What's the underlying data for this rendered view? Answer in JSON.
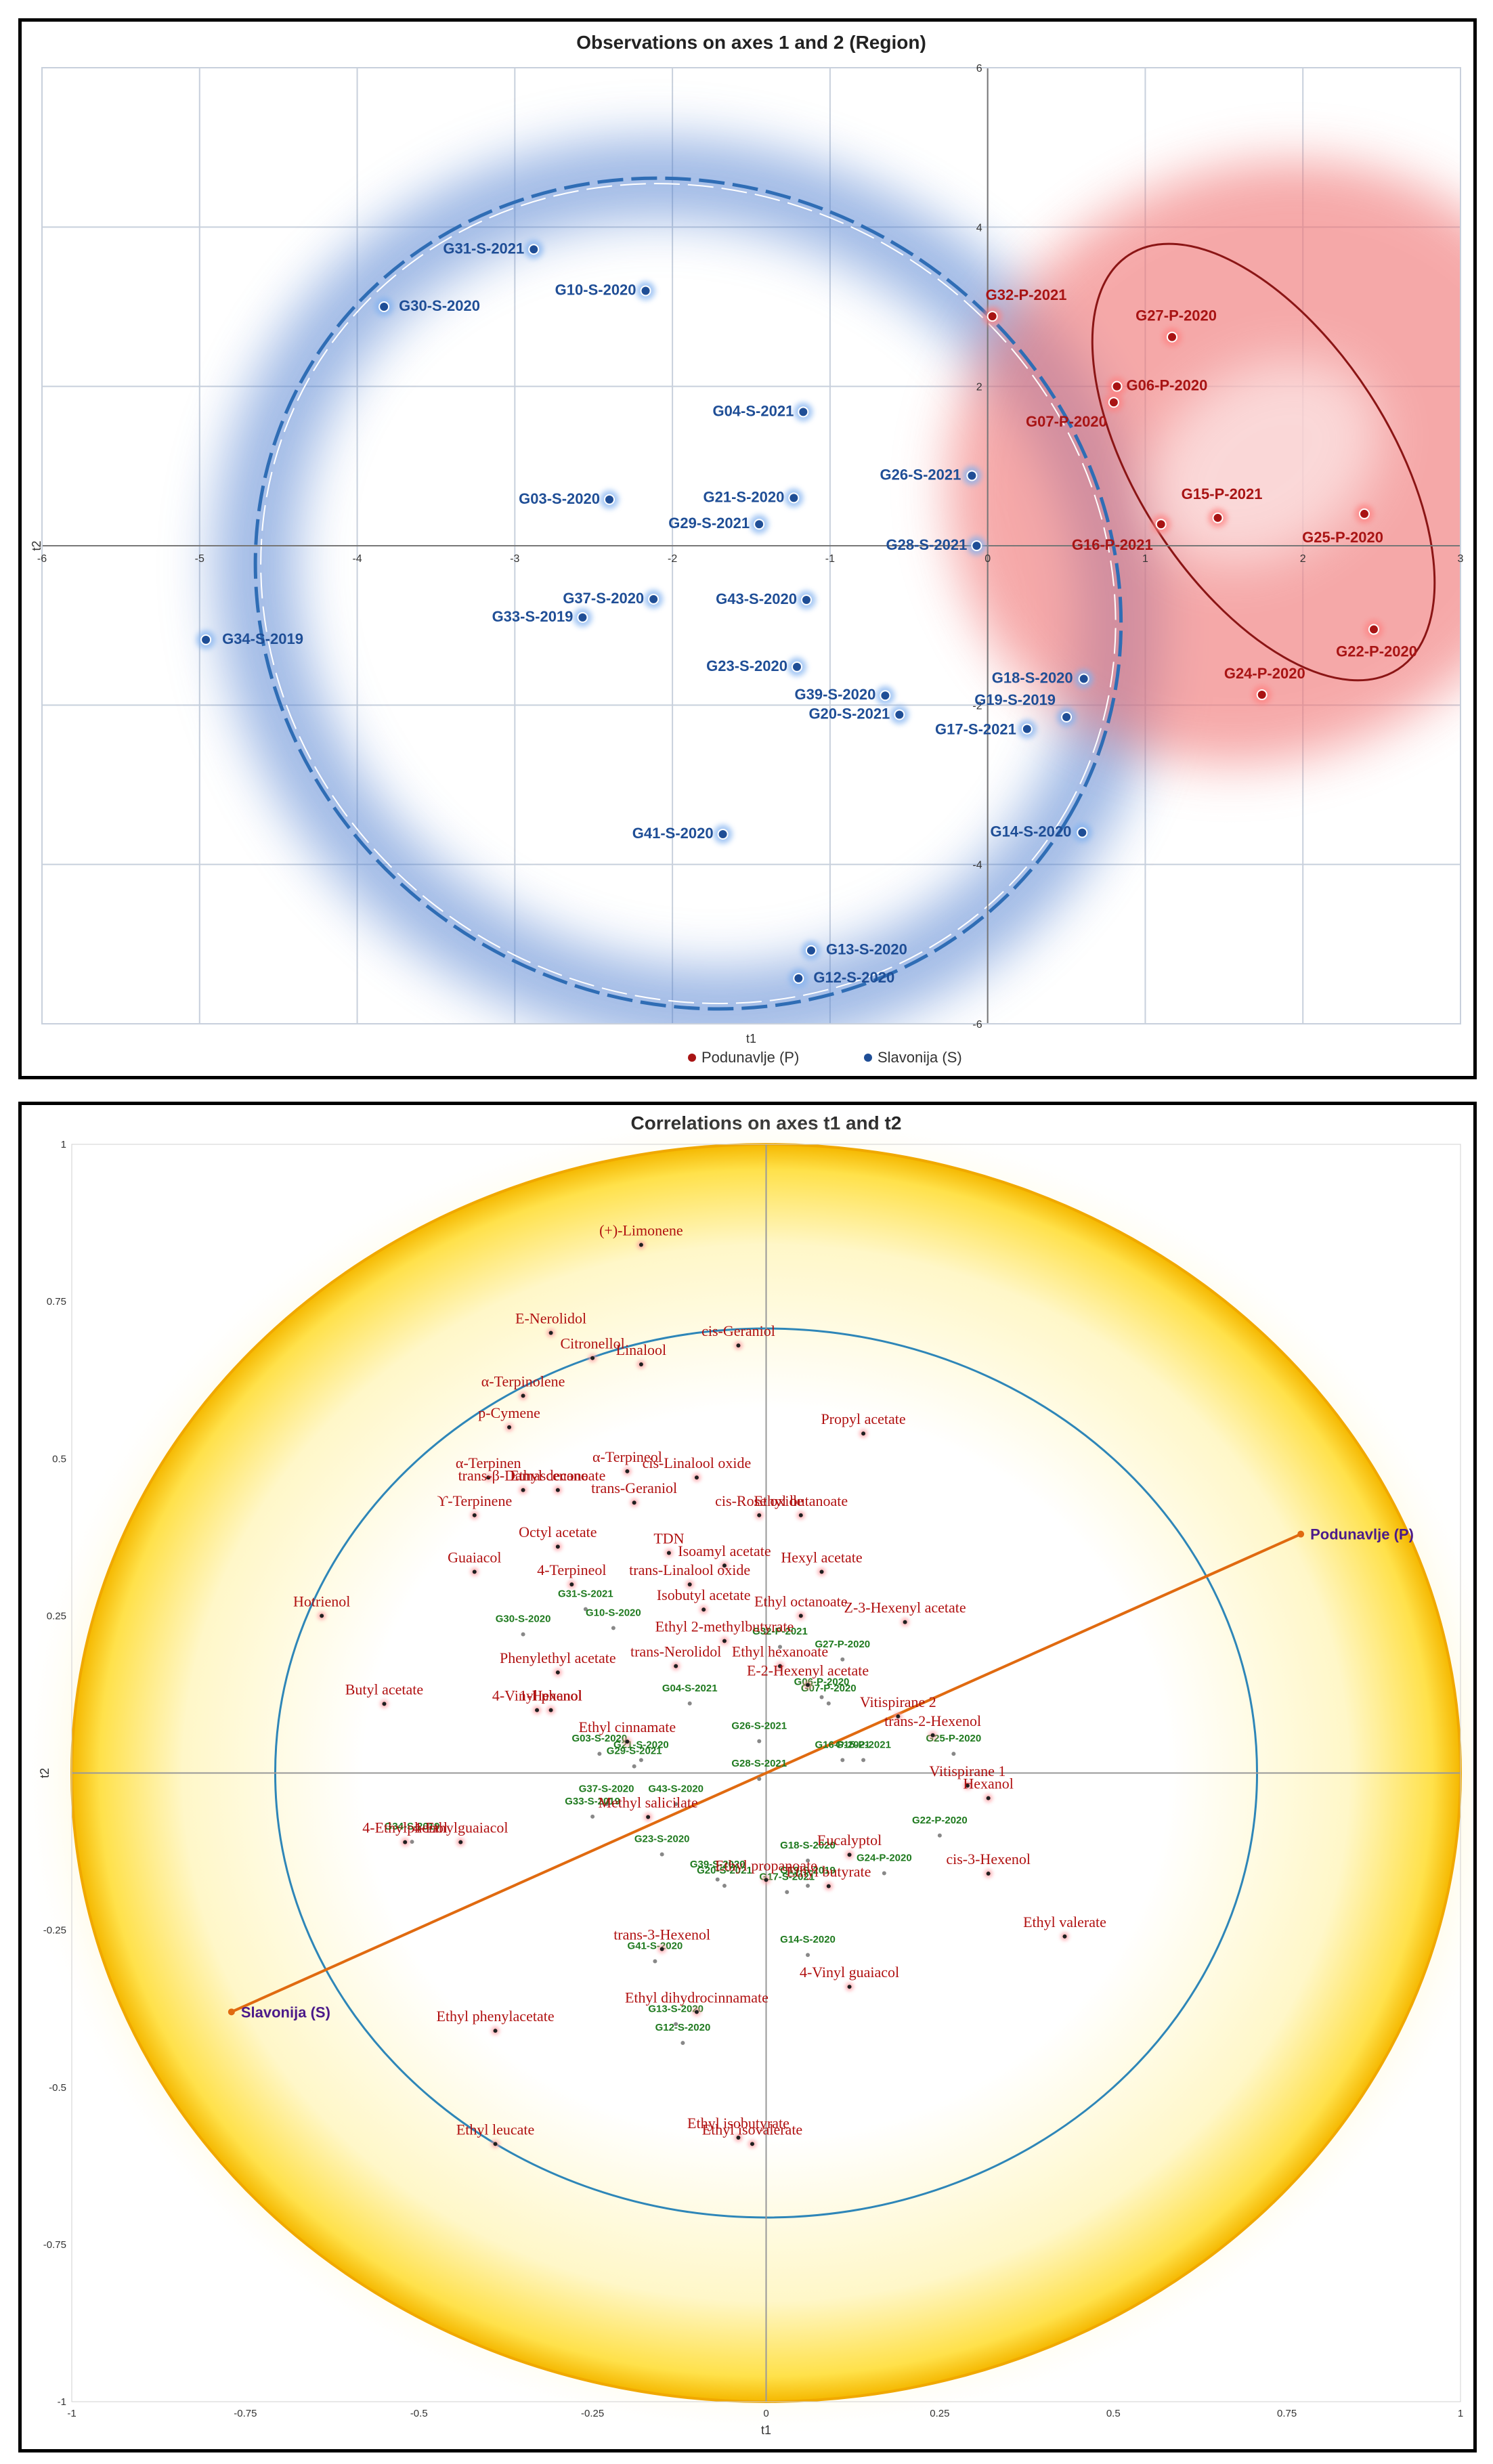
{
  "colors": {
    "slavonija": "#1f4e96",
    "podunavlje": "#a81414",
    "variable_label": "#b01010",
    "supplementary_obs": "#1f7a1f",
    "category": "#4b1a8a",
    "biplot_line": "#e06a10",
    "circle": "#2e86b8",
    "glow_yellow": "#ffe14a"
  },
  "chart_data": [
    {
      "type": "scatter",
      "title": "Observations on axes 1 and 2 (Region)",
      "xlabel": "t1",
      "ylabel": "t2",
      "xlim": [
        -6,
        3
      ],
      "ylim": [
        -6,
        6
      ],
      "xticks": [
        -6,
        -5,
        -4,
        -3,
        -2,
        -1,
        0,
        1,
        2,
        3
      ],
      "yticks": [
        -6,
        -4,
        -2,
        2,
        4,
        6
      ],
      "grid": true,
      "legend": [
        "Podunavlje (P)",
        "Slavonija (S)"
      ],
      "legend_position": "bottom-center",
      "series": [
        {
          "name": "Slavonija (S)",
          "points": [
            {
              "label": "G31-S-2021",
              "x": -2.88,
              "y": 3.72
            },
            {
              "label": "G30-S-2020",
              "x": -3.83,
              "y": 3.0
            },
            {
              "label": "G10-S-2020",
              "x": -2.17,
              "y": 3.2
            },
            {
              "label": "G04-S-2021",
              "x": -1.17,
              "y": 1.68
            },
            {
              "label": "G03-S-2020",
              "x": -2.4,
              "y": 0.58
            },
            {
              "label": "G21-S-2020",
              "x": -1.23,
              "y": 0.6
            },
            {
              "label": "G29-S-2021",
              "x": -1.45,
              "y": 0.27
            },
            {
              "label": "G26-S-2021",
              "x": -0.1,
              "y": 0.88
            },
            {
              "label": "G28-S-2021",
              "x": -0.07,
              "y": 0.0
            },
            {
              "label": "G37-S-2020",
              "x": -2.12,
              "y": -0.67
            },
            {
              "label": "G33-S-2019",
              "x": -2.57,
              "y": -0.9
            },
            {
              "label": "G43-S-2020",
              "x": -1.15,
              "y": -0.68
            },
            {
              "label": "G34-S-2019",
              "x": -4.96,
              "y": -1.18
            },
            {
              "label": "G23-S-2020",
              "x": -1.21,
              "y": -1.52
            },
            {
              "label": "G18-S-2020",
              "x": 0.61,
              "y": -1.67
            },
            {
              "label": "G39-S-2020",
              "x": -0.65,
              "y": -1.88
            },
            {
              "label": "G20-S-2021",
              "x": -0.56,
              "y": -2.12
            },
            {
              "label": "G19-S-2019",
              "x": 0.5,
              "y": -2.15
            },
            {
              "label": "G17-S-2021",
              "x": 0.25,
              "y": -2.3
            },
            {
              "label": "G14-S-2020",
              "x": 0.6,
              "y": -3.6
            },
            {
              "label": "G41-S-2020",
              "x": -1.68,
              "y": -3.62
            },
            {
              "label": "G13-S-2020",
              "x": -1.12,
              "y": -5.08
            },
            {
              "label": "G12-S-2020",
              "x": -1.2,
              "y": -5.43
            }
          ]
        },
        {
          "name": "Podunavlje (P)",
          "points": [
            {
              "label": "G32-P-2021",
              "x": 0.03,
              "y": 2.88
            },
            {
              "label": "G27-P-2020",
              "x": 1.17,
              "y": 2.62
            },
            {
              "label": "G06-P-2020",
              "x": 0.82,
              "y": 2.0
            },
            {
              "label": "G07-P-2020",
              "x": 0.8,
              "y": 1.8
            },
            {
              "label": "G15-P-2021",
              "x": 1.46,
              "y": 0.35
            },
            {
              "label": "G16-P-2021",
              "x": 1.1,
              "y": 0.27
            },
            {
              "label": "G25-P-2020",
              "x": 2.39,
              "y": 0.4
            },
            {
              "label": "G22-P-2020",
              "x": 2.45,
              "y": -1.05
            },
            {
              "label": "G24-P-2020",
              "x": 1.74,
              "y": -1.87
            }
          ]
        }
      ]
    },
    {
      "type": "scatter",
      "title": "Correlations on axes t1 and t2",
      "xlabel": "t1",
      "ylabel": "t2",
      "xlim": [
        -1,
        1
      ],
      "ylim": [
        -1,
        1
      ],
      "xticks": [
        -1,
        -0.75,
        -0.5,
        -0.25,
        0,
        0.25,
        0.5,
        0.75,
        1
      ],
      "yticks": [
        -1,
        -0.75,
        -0.5,
        -0.25,
        0.25,
        0.5,
        0.75,
        1
      ],
      "grid": false,
      "categories": [
        {
          "label": "Podunavlje (P)",
          "x": 0.77,
          "y": 0.38
        },
        {
          "label": "Slavonija (S)",
          "x": -0.77,
          "y": -0.38
        }
      ],
      "variables": [
        {
          "label": "(+)-Limonene",
          "x": -0.18,
          "y": 0.84
        },
        {
          "label": "E-Nerolidol",
          "x": -0.31,
          "y": 0.7
        },
        {
          "label": "Citronellol",
          "x": -0.25,
          "y": 0.66
        },
        {
          "label": "Linalool",
          "x": -0.18,
          "y": 0.65
        },
        {
          "label": "cis-Geraniol",
          "x": -0.04,
          "y": 0.68
        },
        {
          "label": "α-Terpinolene",
          "x": -0.35,
          "y": 0.6
        },
        {
          "label": "p-Cymene",
          "x": -0.37,
          "y": 0.55
        },
        {
          "label": "Propyl acetate",
          "x": 0.14,
          "y": 0.54
        },
        {
          "label": "α-Terpinen",
          "x": -0.4,
          "y": 0.47
        },
        {
          "label": "trans-β-Damascenone",
          "x": -0.35,
          "y": 0.45
        },
        {
          "label": "Ethyl decanoate",
          "x": -0.3,
          "y": 0.45
        },
        {
          "label": "α-Terpineol",
          "x": -0.2,
          "y": 0.48
        },
        {
          "label": "cis-Linalool oxide",
          "x": -0.1,
          "y": 0.47
        },
        {
          "label": "trans-Geraniol",
          "x": -0.19,
          "y": 0.43
        },
        {
          "label": "ϒ-Terpinene",
          "x": -0.42,
          "y": 0.41
        },
        {
          "label": "cis-Rose oxide",
          "x": -0.01,
          "y": 0.41
        },
        {
          "label": "Ethyl butanoate",
          "x": 0.05,
          "y": 0.41
        },
        {
          "label": "Octyl acetate",
          "x": -0.3,
          "y": 0.36
        },
        {
          "label": "TDN",
          "x": -0.14,
          "y": 0.35
        },
        {
          "label": "Isoamyl acetate",
          "x": -0.06,
          "y": 0.33
        },
        {
          "label": "Hexyl acetate",
          "x": 0.08,
          "y": 0.32
        },
        {
          "label": "Guaiacol",
          "x": -0.42,
          "y": 0.32
        },
        {
          "label": "4-Terpineol",
          "x": -0.28,
          "y": 0.3
        },
        {
          "label": "trans-Linalool oxide",
          "x": -0.11,
          "y": 0.3
        },
        {
          "label": "Hotrienol",
          "x": -0.64,
          "y": 0.25
        },
        {
          "label": "Isobutyl acetate",
          "x": -0.09,
          "y": 0.26
        },
        {
          "label": "Ethyl octanoate",
          "x": 0.05,
          "y": 0.25
        },
        {
          "label": "Z-3-Hexenyl acetate",
          "x": 0.2,
          "y": 0.24
        },
        {
          "label": "Ethyl 2-methylbutyrate",
          "x": -0.06,
          "y": 0.21
        },
        {
          "label": "Phenylethyl acetate",
          "x": -0.3,
          "y": 0.16
        },
        {
          "label": "trans-Nerolidol",
          "x": -0.13,
          "y": 0.17
        },
        {
          "label": "Ethyl hexanoate",
          "x": 0.02,
          "y": 0.17
        },
        {
          "label": "E-2-Hexenyl acetate",
          "x": 0.06,
          "y": 0.14
        },
        {
          "label": "Butyl acetate",
          "x": -0.55,
          "y": 0.11
        },
        {
          "label": "4-Vinyl phenol",
          "x": -0.33,
          "y": 0.1
        },
        {
          "label": "1-Hexanol",
          "x": -0.31,
          "y": 0.1
        },
        {
          "label": "Vitispirane 2",
          "x": 0.19,
          "y": 0.09
        },
        {
          "label": "trans-2-Hexenol",
          "x": 0.24,
          "y": 0.06
        },
        {
          "label": "Ethyl cinnamate",
          "x": -0.2,
          "y": 0.05
        },
        {
          "label": "Vitispirane 1",
          "x": 0.29,
          "y": -0.02
        },
        {
          "label": "Hexanol",
          "x": 0.32,
          "y": -0.04
        },
        {
          "label": "Methyl salicilate",
          "x": -0.17,
          "y": -0.07
        },
        {
          "label": "4-Ethylphenol",
          "x": -0.52,
          "y": -0.11
        },
        {
          "label": "4-Ethylguaiacol",
          "x": -0.44,
          "y": -0.11
        },
        {
          "label": "Eucalyptol",
          "x": 0.12,
          "y": -0.13
        },
        {
          "label": "Ethyl propanoate",
          "x": 0.0,
          "y": -0.17
        },
        {
          "label": "Ethyl butyrate",
          "x": 0.09,
          "y": -0.18
        },
        {
          "label": "cis-3-Hexenol",
          "x": 0.32,
          "y": -0.16
        },
        {
          "label": "Ethyl valerate",
          "x": 0.43,
          "y": -0.26
        },
        {
          "label": "trans-3-Hexenol",
          "x": -0.15,
          "y": -0.28
        },
        {
          "label": "4-Vinyl guaiacol",
          "x": 0.12,
          "y": -0.34
        },
        {
          "label": "Ethyl dihydrocinnamate",
          "x": -0.1,
          "y": -0.38
        },
        {
          "label": "Ethyl phenylacetate",
          "x": -0.39,
          "y": -0.41
        },
        {
          "label": "Ethyl leucate",
          "x": -0.39,
          "y": -0.59
        },
        {
          "label": "Ethyl isobutyrate",
          "x": -0.04,
          "y": -0.58
        },
        {
          "label": "Ethyl isovalerate",
          "x": -0.02,
          "y": -0.59
        }
      ],
      "supplementary_observations": [
        {
          "label": "G31-S-2021",
          "x": -0.26,
          "y": 0.28
        },
        {
          "label": "G30-S-2020",
          "x": -0.35,
          "y": 0.24
        },
        {
          "label": "G10-S-2020",
          "x": -0.22,
          "y": 0.25
        },
        {
          "label": "G32-P-2021",
          "x": 0.02,
          "y": 0.22
        },
        {
          "label": "G27-P-2020",
          "x": 0.11,
          "y": 0.2
        },
        {
          "label": "G06-P-2020",
          "x": 0.08,
          "y": 0.14
        },
        {
          "label": "G07-P-2020",
          "x": 0.09,
          "y": 0.13
        },
        {
          "label": "G04-S-2021",
          "x": -0.11,
          "y": 0.13
        },
        {
          "label": "G03-S-2020",
          "x": -0.24,
          "y": 0.05
        },
        {
          "label": "G21-S-2020",
          "x": -0.18,
          "y": 0.04
        },
        {
          "label": "G29-S-2021",
          "x": -0.19,
          "y": 0.03
        },
        {
          "label": "G26-S-2021",
          "x": -0.01,
          "y": 0.07
        },
        {
          "label": "G28-S-2021",
          "x": -0.01,
          "y": 0.01
        },
        {
          "label": "G16-P-2021",
          "x": 0.11,
          "y": 0.04
        },
        {
          "label": "G15-P-2021",
          "x": 0.14,
          "y": 0.04
        },
        {
          "label": "G25-P-2020",
          "x": 0.27,
          "y": 0.05
        },
        {
          "label": "G37-S-2020",
          "x": -0.23,
          "y": -0.03
        },
        {
          "label": "G33-S-2019",
          "x": -0.25,
          "y": -0.05
        },
        {
          "label": "G43-S-2020",
          "x": -0.13,
          "y": -0.03
        },
        {
          "label": "G34-S-2019",
          "x": -0.51,
          "y": -0.09
        },
        {
          "label": "G22-P-2020",
          "x": 0.25,
          "y": -0.08
        },
        {
          "label": "G23-S-2020",
          "x": -0.15,
          "y": -0.11
        },
        {
          "label": "G18-S-2020",
          "x": 0.06,
          "y": -0.12
        },
        {
          "label": "G24-P-2020",
          "x": 0.17,
          "y": -0.14
        },
        {
          "label": "G39-S-2020",
          "x": -0.07,
          "y": -0.15
        },
        {
          "label": "G20-S-2021",
          "x": -0.06,
          "y": -0.16
        },
        {
          "label": "G19-S-2019",
          "x": 0.06,
          "y": -0.16
        },
        {
          "label": "G17-S-2021",
          "x": 0.03,
          "y": -0.17
        },
        {
          "label": "G14-S-2020",
          "x": 0.06,
          "y": -0.27
        },
        {
          "label": "G41-S-2020",
          "x": -0.16,
          "y": -0.28
        },
        {
          "label": "G13-S-2020",
          "x": -0.13,
          "y": -0.38
        },
        {
          "label": "G12-S-2020",
          "x": -0.12,
          "y": -0.41
        }
      ]
    }
  ]
}
